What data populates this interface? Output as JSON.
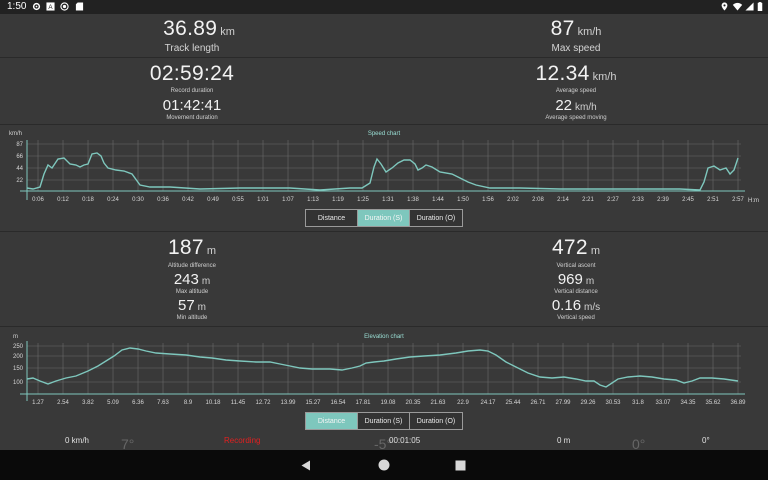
{
  "status_bar": {
    "time": "1:50",
    "left_icons": [
      "settings-icon",
      "a-icon",
      "record-icon",
      "sd-card-icon"
    ],
    "right_icons": [
      "location-icon",
      "wifi-icon",
      "signal-icon",
      "battery-icon"
    ]
  },
  "stats_top": {
    "track_length": {
      "value": "36.89",
      "unit": "km",
      "label": "Track length"
    },
    "max_speed": {
      "value": "87",
      "unit": "km/h",
      "label": "Max speed"
    },
    "record_duration": {
      "value": "02:59:24",
      "label": "Record duration"
    },
    "movement_duration": {
      "value": "01:42:41",
      "label": "Movement duration"
    },
    "average_speed": {
      "value": "12.34",
      "unit": "km/h",
      "label": "Average speed"
    },
    "average_speed_moving": {
      "value": "22",
      "unit": "km/h",
      "label": "Average speed moving"
    }
  },
  "speed_chart": {
    "title": "Speed chart",
    "unit_label": "km/h",
    "x_unit": "H:m",
    "y_ticks": [
      "87",
      "66",
      "44",
      "22"
    ],
    "x_ticks": [
      "0:06",
      "0:12",
      "0:18",
      "0:24",
      "0:30",
      "0:36",
      "0:42",
      "0:49",
      "0:55",
      "1:01",
      "1:07",
      "1:13",
      "1:19",
      "1:25",
      "1:31",
      "1:38",
      "1:44",
      "1:50",
      "1:56",
      "2:02",
      "2:08",
      "2:14",
      "2:21",
      "2:27",
      "2:33",
      "2:39",
      "2:45",
      "2:51",
      "2:57"
    ],
    "tabs": [
      {
        "label": "Distance",
        "active": false
      },
      {
        "label": "Duration (S)",
        "active": true
      },
      {
        "label": "Duration (O)",
        "active": false
      }
    ]
  },
  "stats_elev": {
    "altitude_difference": {
      "value": "187",
      "unit": "m",
      "label": "Altitude difference"
    },
    "max_altitude": {
      "value": "243",
      "unit": "m",
      "label": "Max altitude"
    },
    "min_altitude": {
      "value": "57",
      "unit": "m",
      "label": "Min altitude"
    },
    "vertical_ascent": {
      "value": "472",
      "unit": "m",
      "label": "Vertical ascent"
    },
    "vertical_distance": {
      "value": "969",
      "unit": "m",
      "label": "Vertical distance"
    },
    "vertical_speed": {
      "value": "0.16",
      "unit": "m/s",
      "label": "Vertical speed"
    }
  },
  "elevation_chart": {
    "title": "Elevation chart",
    "unit_label": "m",
    "y_ticks": [
      "250",
      "200",
      "150",
      "100"
    ],
    "x_ticks": [
      "1.27",
      "2.54",
      "3.82",
      "5.09",
      "6.36",
      "7.63",
      "8.9",
      "10.18",
      "11.45",
      "12.72",
      "13.99",
      "15.27",
      "16.54",
      "17.81",
      "19.08",
      "20.35",
      "21.63",
      "22.9",
      "24.17",
      "25.44",
      "26.71",
      "27.99",
      "29.26",
      "30.53",
      "31.8",
      "33.07",
      "34.35",
      "35.62",
      "36.89"
    ],
    "tabs": [
      {
        "label": "Distance",
        "active": true
      },
      {
        "label": "Duration (S)",
        "active": false
      },
      {
        "label": "Duration (O)",
        "active": false
      }
    ]
  },
  "bottom_row": {
    "speed": "0 km/h",
    "temp_left": "7°",
    "recording": "Recording",
    "temp_mid": "-5°",
    "timer": "00:01:05",
    "distance": "0 m",
    "angle_big": "0°",
    "angle_small": "0°"
  },
  "colors": {
    "accent": "#7ec7bd",
    "background": "#393939",
    "recording": "#e02020"
  }
}
